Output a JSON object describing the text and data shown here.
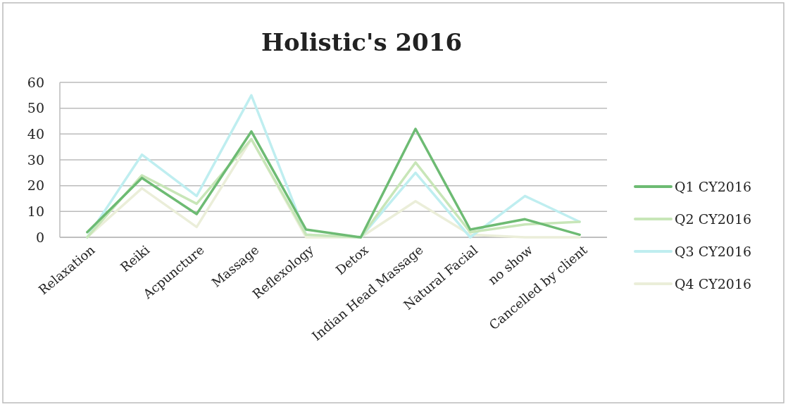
{
  "chart_data": {
    "type": "line",
    "title": "Holistic's 2016",
    "categories": [
      "Relaxation",
      "Reiki",
      "Acpuncture",
      "Massage",
      "Reflexology",
      "Detox",
      "Indian Head Massage",
      "Natural Facial",
      "no show",
      "Cancelled by client"
    ],
    "series": [
      {
        "name": "Q1 CY2016",
        "color": "#6dbb73",
        "values": [
          2,
          23,
          9,
          41,
          3,
          0,
          42,
          3,
          7,
          1
        ]
      },
      {
        "name": "Q2 CY2016",
        "color": "#c8e6b8",
        "values": [
          0,
          24,
          13,
          38,
          1,
          0,
          29,
          2,
          5,
          6
        ]
      },
      {
        "name": "Q3 CY2016",
        "color": "#bfeef0",
        "values": [
          0,
          32,
          16,
          55,
          1,
          0,
          25,
          0,
          16,
          6
        ]
      },
      {
        "name": "Q4 CY2016",
        "color": "#ebeed9",
        "values": [
          0,
          19,
          4,
          38,
          0,
          0,
          14,
          1,
          0,
          0
        ]
      }
    ],
    "ylim": [
      0,
      60
    ],
    "yticks": [
      0,
      10,
      20,
      30,
      40,
      50,
      60
    ],
    "grid": "y",
    "legend": "right",
    "marker": "none",
    "line_style": "solid"
  }
}
